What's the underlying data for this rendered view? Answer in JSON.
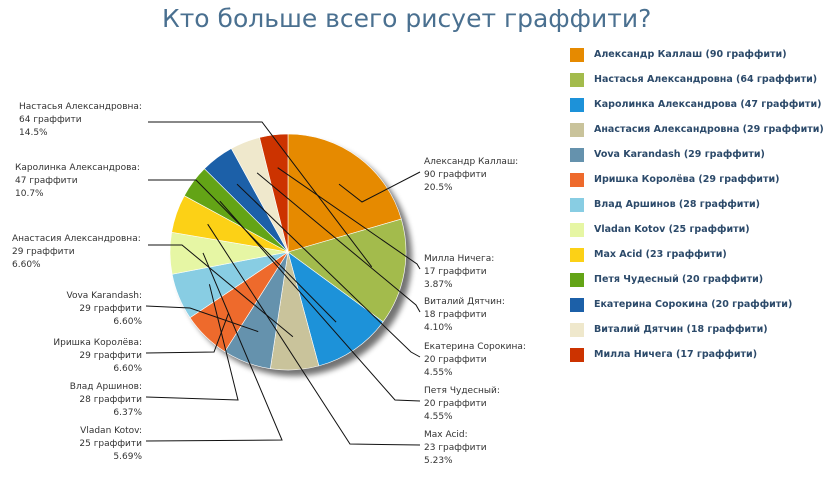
{
  "chart_data": {
    "type": "pie",
    "title": "Кто больше всего рисует граффити?",
    "slices": [
      {
        "name": "Александр Каллаш",
        "value": 90,
        "percent": 20.5,
        "color": "#e68a00",
        "label_lines": [
          "Александр Каллаш:",
          "90 граффити",
          "20.5%"
        ],
        "legend": "Александр Каллаш (90 граффити)"
      },
      {
        "name": "Настасья Александровна",
        "value": 64,
        "percent": 14.5,
        "color": "#a3bb4c",
        "label_lines": [
          "Настасья Александровна:",
          "64 граффити",
          "14.5%"
        ],
        "legend": "Настасья Александровна (64 граффити)"
      },
      {
        "name": "Каролинка Александрова",
        "value": 47,
        "percent": 10.7,
        "color": "#1d92d9",
        "label_lines": [
          "Каролинка Александрова:",
          "47 граффити",
          "10.7%"
        ],
        "legend": "Каролинка Александрова (47 граффити)"
      },
      {
        "name": "Анастасия Александровна",
        "value": 29,
        "percent": 6.6,
        "color": "#c9c39b",
        "label_lines": [
          "Анастасия Александровна:",
          "29 граффити",
          "6.60%"
        ],
        "legend": "Анастасия Александровна (29 граффити)"
      },
      {
        "name": "Vova Karandash",
        "value": 29,
        "percent": 6.6,
        "color": "#6592ad",
        "label_lines": [
          "Vova Karandash:",
          "29 граффити",
          "6.60%"
        ],
        "legend": "Vova Karandash (29 граффити)"
      },
      {
        "name": "Иришка Королёва",
        "value": 29,
        "percent": 6.6,
        "color": "#ee6a2c",
        "label_lines": [
          "Иришка Королёва:",
          "29 граффити",
          "6.60%"
        ],
        "legend": "Иришка Королёва (29 граффити)"
      },
      {
        "name": "Влад Аршинов",
        "value": 28,
        "percent": 6.37,
        "color": "#88cde3",
        "label_lines": [
          "Влад Аршинов:",
          "28 граффити",
          "6.37%"
        ],
        "legend": "Влад Аршинов (28 граффити)"
      },
      {
        "name": "Vladan Kotov",
        "value": 25,
        "percent": 5.69,
        "color": "#e6f6a4",
        "label_lines": [
          "Vladan Kotov:",
          "25 граффити",
          "5.69%"
        ],
        "legend": "Vladan Kotov (25 граффити)"
      },
      {
        "name": "Max Acid",
        "value": 23,
        "percent": 5.23,
        "color": "#fcd116",
        "label_lines": [
          "Max Acid:",
          "23 граффити",
          "5.23%"
        ],
        "legend": "Max Acid (23 граффити)"
      },
      {
        "name": "Петя Чудесный",
        "value": 20,
        "percent": 4.55,
        "color": "#63a416",
        "label_lines": [
          "Петя Чудесный:",
          "20 граффити",
          "4.55%"
        ],
        "legend": "Петя Чудесный (20 граффити)"
      },
      {
        "name": "Екатерина Сорокина",
        "value": 20,
        "percent": 4.55,
        "color": "#1c60a8",
        "label_lines": [
          "Екатерина Сорокина:",
          "20 граффити",
          "4.55%"
        ],
        "legend": "Екатерина Сорокина (20 граффити)"
      },
      {
        "name": "Виталий Дятчин",
        "value": 18,
        "percent": 4.1,
        "color": "#efe8cc",
        "label_lines": [
          "Виталий Дятчин:",
          "18 граффити",
          "4.10%"
        ],
        "legend": "Виталий Дятчин (18 граффити)"
      },
      {
        "name": "Милла Ничега",
        "value": 17,
        "percent": 3.87,
        "color": "#cc3300",
        "label_lines": [
          "Милла Ничега:",
          "17 граффити",
          "3.87%"
        ],
        "legend": "Милла Ничега (17 граффити)"
      }
    ],
    "legend_position": "right"
  }
}
